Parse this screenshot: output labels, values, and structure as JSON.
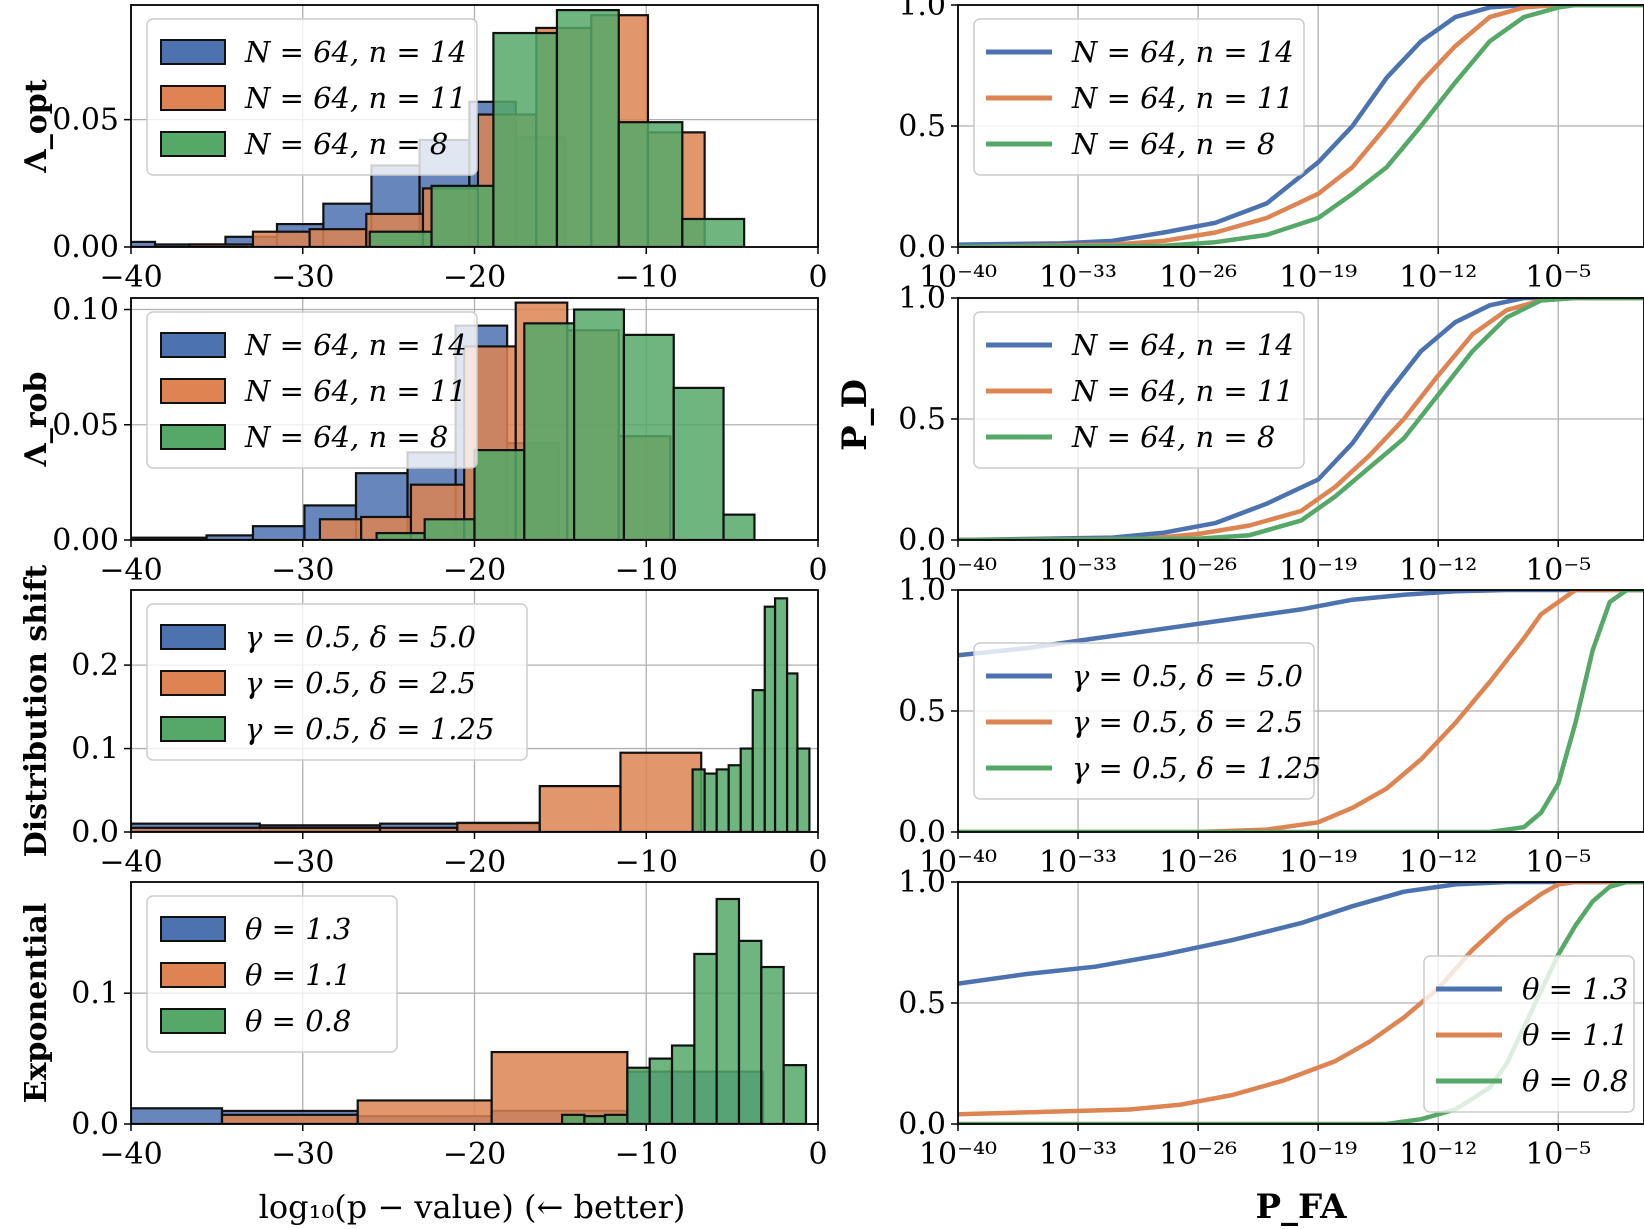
{
  "figure": {
    "hist_xlabel": "log₁₀(p − value) (← better)",
    "roc_xlabel": "P_FA",
    "roc_ylabel": "P_D"
  },
  "colors": {
    "blue": "#4c72b0",
    "orange": "#dd8452",
    "green": "#55a868"
  },
  "chart_data": [
    {
      "type": "bar",
      "row": 0,
      "panel": "histogram",
      "ylabel": "Λ_opt",
      "xlim": [
        -40,
        0
      ],
      "ylim": [
        0,
        0.095
      ],
      "xticks": [
        -40,
        -30,
        -20,
        -10,
        0
      ],
      "xtick_labels": [
        "−40",
        "−30",
        "−20",
        "−10",
        "0"
      ],
      "yticks": [
        0,
        0.05
      ],
      "ytick_labels": [
        "0.00",
        "0.05"
      ],
      "grid": true,
      "legend": "top-left",
      "series": [
        {
          "name": "N = 64, n = 14",
          "color": "blue",
          "edges": [
            -40,
            -38.6,
            -34.5,
            -31.5,
            -28.8,
            -26,
            -23.2,
            -20.3,
            -17.6,
            -14.7
          ],
          "values": [
            0.002,
            0.001,
            0.004,
            0.009,
            0.017,
            0.032,
            0.042,
            0.057,
            0.043
          ]
        },
        {
          "name": "N = 64, n = 11",
          "color": "orange",
          "edges": [
            -36.6,
            -32.9,
            -29.6,
            -26.3,
            -23,
            -19.8,
            -16.4,
            -13.2,
            -9.9,
            -6.6
          ],
          "values": [
            0.001,
            0.006,
            0.007,
            0.013,
            0.023,
            0.052,
            0.086,
            0.091,
            0.045
          ]
        },
        {
          "name": "N = 64, n = 8",
          "color": "green",
          "edges": [
            -26.1,
            -22.5,
            -18.9,
            -15.2,
            -11.6,
            -7.9,
            -4.3
          ],
          "values": [
            0.006,
            0.024,
            0.084,
            0.093,
            0.049,
            0.011
          ]
        }
      ]
    },
    {
      "type": "line",
      "row": 0,
      "panel": "roc",
      "xscale": "log",
      "xlim_log10": [
        -40,
        0
      ],
      "ylim": [
        0,
        1.0
      ],
      "xticks_log10": [
        -40,
        -33,
        -26,
        -19,
        -12,
        -5
      ],
      "xtick_labels": [
        "10⁻⁴⁰",
        "10⁻³³",
        "10⁻²⁶",
        "10⁻¹⁹",
        "10⁻¹²",
        "10⁻⁵"
      ],
      "yticks": [
        0,
        0.5,
        1.0
      ],
      "ytick_labels": [
        "0.0",
        "0.5",
        "1.0"
      ],
      "grid": true,
      "legend": "top-left",
      "series": [
        {
          "name": "N = 64, n = 14",
          "color": "blue",
          "x": [
            -40,
            -34,
            -31,
            -28,
            -25,
            -22,
            -19,
            -17,
            -15,
            -13,
            -11,
            -9,
            -7,
            -5,
            0
          ],
          "y": [
            0.01,
            0.015,
            0.025,
            0.06,
            0.1,
            0.18,
            0.35,
            0.5,
            0.7,
            0.85,
            0.95,
            0.99,
            1.0,
            1.0,
            1.0
          ]
        },
        {
          "name": "N = 64, n = 11",
          "color": "orange",
          "x": [
            -40,
            -31,
            -28,
            -25,
            -22,
            -19,
            -17,
            -15,
            -13,
            -11,
            -9,
            -7,
            -5,
            0
          ],
          "y": [
            0.0,
            0.01,
            0.025,
            0.06,
            0.12,
            0.22,
            0.33,
            0.5,
            0.68,
            0.83,
            0.95,
            0.99,
            1.0,
            1.0
          ]
        },
        {
          "name": "N = 64, n = 8",
          "color": "green",
          "x": [
            -40,
            -28,
            -25,
            -22,
            -19,
            -17,
            -15,
            -13,
            -11,
            -9,
            -7,
            -5,
            -4,
            0
          ],
          "y": [
            0.0,
            0.005,
            0.02,
            0.05,
            0.12,
            0.22,
            0.33,
            0.5,
            0.68,
            0.85,
            0.95,
            0.99,
            1.0,
            1.0
          ]
        }
      ]
    },
    {
      "type": "bar",
      "row": 1,
      "panel": "histogram",
      "ylabel": "Λ_rob",
      "xlim": [
        -40,
        0
      ],
      "ylim": [
        0,
        0.105
      ],
      "xticks": [
        -40,
        -30,
        -20,
        -10,
        0
      ],
      "xtick_labels": [
        "−40",
        "−30",
        "−20",
        "−10",
        "0"
      ],
      "yticks": [
        0,
        0.05,
        0.1
      ],
      "ytick_labels": [
        "0.00",
        "0.05",
        "0.10"
      ],
      "grid": true,
      "legend": "top-left",
      "series": [
        {
          "name": "N = 64, n = 14",
          "color": "blue",
          "edges": [
            -40,
            -35.6,
            -32.9,
            -29.9,
            -26.9,
            -23.9,
            -21.1,
            -18.1,
            -15.1
          ],
          "values": [
            0.001,
            0.002,
            0.006,
            0.015,
            0.029,
            0.038,
            0.093,
            0.042
          ]
        },
        {
          "name": "N = 64, n = 11",
          "color": "orange",
          "edges": [
            -29,
            -26.6,
            -23.7,
            -20.6,
            -17.6,
            -14.6,
            -11.6,
            -8.6
          ],
          "values": [
            0.009,
            0.01,
            0.024,
            0.084,
            0.103,
            0.091,
            0.045
          ]
        },
        {
          "name": "N = 64, n = 8",
          "color": "green",
          "edges": [
            -25.7,
            -22.9,
            -20,
            -17.1,
            -14.2,
            -11.3,
            -8.4,
            -5.5,
            -3.7
          ],
          "values": [
            0.003,
            0.009,
            0.039,
            0.094,
            0.1,
            0.089,
            0.066,
            0.011
          ]
        }
      ]
    },
    {
      "type": "line",
      "row": 1,
      "panel": "roc",
      "xscale": "log",
      "xlim_log10": [
        -40,
        0
      ],
      "ylim": [
        0,
        1.0
      ],
      "xticks_log10": [
        -40,
        -33,
        -26,
        -19,
        -12,
        -5
      ],
      "xtick_labels": [
        "10⁻⁴⁰",
        "10⁻³³",
        "10⁻²⁶",
        "10⁻¹⁹",
        "10⁻¹²",
        "10⁻⁵"
      ],
      "yticks": [
        0,
        0.5,
        1.0
      ],
      "ytick_labels": [
        "0.0",
        "0.5",
        "1.0"
      ],
      "grid": true,
      "legend": "top-left",
      "series": [
        {
          "name": "N = 64, n = 14",
          "color": "blue",
          "x": [
            -40,
            -31,
            -28,
            -25,
            -22,
            -19,
            -17,
            -15,
            -13,
            -11,
            -9,
            -7,
            -5,
            0
          ],
          "y": [
            0.0,
            0.01,
            0.03,
            0.07,
            0.15,
            0.25,
            0.4,
            0.6,
            0.78,
            0.9,
            0.97,
            1.0,
            1.0,
            1.0
          ]
        },
        {
          "name": "N = 64, n = 11",
          "color": "orange",
          "x": [
            -40,
            -29,
            -26,
            -23,
            -20,
            -18,
            -16,
            -14,
            -12,
            -10,
            -8,
            -6,
            -4,
            0
          ],
          "y": [
            0.0,
            0.005,
            0.025,
            0.06,
            0.12,
            0.22,
            0.35,
            0.5,
            0.68,
            0.85,
            0.95,
            0.99,
            1.0,
            1.0
          ]
        },
        {
          "name": "N = 64, n = 8",
          "color": "green",
          "x": [
            -40,
            -26,
            -23,
            -20,
            -18,
            -16,
            -14,
            -12,
            -10,
            -8,
            -6,
            -4,
            0
          ],
          "y": [
            0.0,
            0.005,
            0.02,
            0.08,
            0.18,
            0.3,
            0.42,
            0.6,
            0.78,
            0.92,
            0.99,
            1.0,
            1.0
          ]
        }
      ]
    },
    {
      "type": "bar",
      "row": 2,
      "panel": "histogram",
      "ylabel": "Distribution shift",
      "xlim": [
        -40,
        0
      ],
      "ylim": [
        0,
        0.29
      ],
      "xticks": [
        -40,
        -30,
        -20,
        -10,
        0
      ],
      "xtick_labels": [
        "−40",
        "−30",
        "−20",
        "−10",
        "0"
      ],
      "yticks": [
        0,
        0.1,
        0.2
      ],
      "ytick_labels": [
        "0.0",
        "0.1",
        "0.2"
      ],
      "grid": true,
      "legend": "top-left",
      "series": [
        {
          "name": "γ = 0.5, δ = 5.0",
          "color": "blue",
          "edges": [
            -40,
            -32.5,
            -25.5,
            -16.2
          ],
          "values": [
            0.01,
            0.008,
            0.01
          ]
        },
        {
          "name": "γ = 0.5, δ = 2.5",
          "color": "orange",
          "edges": [
            -40,
            -25.5,
            -21,
            -16.2,
            -11.5,
            -6.8
          ],
          "values": [
            0.005,
            0.005,
            0.011,
            0.055,
            0.095
          ]
        },
        {
          "name": "γ = 0.5, δ = 1.25",
          "color": "green",
          "edges": [
            -7.3,
            -6.6,
            -5.9,
            -5.2,
            -4.5,
            -3.8,
            -3.1,
            -2.5,
            -1.8,
            -1.2,
            -0.5
          ],
          "values": [
            0.075,
            0.07,
            0.075,
            0.08,
            0.1,
            0.17,
            0.27,
            0.28,
            0.19,
            0.1
          ]
        }
      ]
    },
    {
      "type": "line",
      "row": 2,
      "panel": "roc",
      "xscale": "log",
      "xlim_log10": [
        -40,
        0
      ],
      "ylim": [
        0,
        1.0
      ],
      "xticks_log10": [
        -40,
        -33,
        -26,
        -19,
        -12,
        -5
      ],
      "xtick_labels": [
        "10⁻⁴⁰",
        "10⁻³³",
        "10⁻²⁶",
        "10⁻¹⁹",
        "10⁻¹²",
        "10⁻⁵"
      ],
      "yticks": [
        0,
        0.5,
        1.0
      ],
      "ytick_labels": [
        "0.0",
        "0.5",
        "1.0"
      ],
      "grid": true,
      "legend": "center-left",
      "series": [
        {
          "name": "γ = 0.5, δ = 5.0",
          "color": "blue",
          "x": [
            -40,
            -36,
            -32,
            -28,
            -24,
            -20,
            -17,
            -14,
            -11,
            -8,
            -5,
            0
          ],
          "y": [
            0.73,
            0.76,
            0.8,
            0.84,
            0.88,
            0.92,
            0.96,
            0.98,
            0.995,
            1.0,
            1.0,
            1.0
          ]
        },
        {
          "name": "γ = 0.5, δ = 2.5",
          "color": "orange",
          "x": [
            -40,
            -26,
            -22,
            -19,
            -17,
            -15,
            -13,
            -11,
            -9,
            -7,
            -6,
            -5,
            -4,
            0
          ],
          "y": [
            0.0,
            0.0,
            0.01,
            0.04,
            0.1,
            0.18,
            0.3,
            0.45,
            0.62,
            0.8,
            0.9,
            0.95,
            1.0,
            1.0
          ]
        },
        {
          "name": "γ = 0.5, δ = 1.25",
          "color": "green",
          "x": [
            -40,
            -9,
            -7,
            -6,
            -5,
            -4,
            -3,
            -2,
            -1,
            0
          ],
          "y": [
            0.0,
            0.0,
            0.02,
            0.08,
            0.2,
            0.45,
            0.75,
            0.95,
            1.0,
            1.0
          ]
        }
      ]
    },
    {
      "type": "bar",
      "row": 3,
      "panel": "histogram",
      "ylabel": "Exponential",
      "xlim": [
        -40,
        0
      ],
      "ylim": [
        0,
        0.185
      ],
      "xticks": [
        -40,
        -30,
        -20,
        -10,
        0
      ],
      "xtick_labels": [
        "−40",
        "−30",
        "−20",
        "−10",
        "0"
      ],
      "yticks": [
        0,
        0.1
      ],
      "ytick_labels": [
        "0.0",
        "0.1"
      ],
      "grid": true,
      "legend": "top-left",
      "series": [
        {
          "name": "θ = 1.3",
          "color": "blue",
          "edges": [
            -40,
            -34.7,
            -26.8,
            -19,
            -11.1,
            -3.2
          ],
          "values": [
            0.012,
            0.01,
            0.006,
            0.01,
            0.04
          ]
        },
        {
          "name": "θ = 1.1",
          "color": "orange",
          "edges": [
            -34.7,
            -26.8,
            -19,
            -11.1
          ],
          "values": [
            0.007,
            0.018,
            0.055
          ]
        },
        {
          "name": "θ = 0.8",
          "color": "green",
          "edges": [
            -14.9,
            -13.6,
            -12.4,
            -11.1,
            -9.8,
            -8.5,
            -7.2,
            -5.9,
            -4.6,
            -3.3,
            -2,
            -0.7
          ],
          "values": [
            0.007,
            0.006,
            0.007,
            0.043,
            0.05,
            0.06,
            0.13,
            0.172,
            0.14,
            0.12,
            0.045
          ]
        }
      ]
    },
    {
      "type": "line",
      "row": 3,
      "panel": "roc",
      "xscale": "log",
      "xlim_log10": [
        -40,
        0
      ],
      "ylim": [
        0,
        1.0
      ],
      "xticks_log10": [
        -40,
        -33,
        -26,
        -19,
        -12,
        -5
      ],
      "xtick_labels": [
        "10⁻⁴⁰",
        "10⁻³³",
        "10⁻²⁶",
        "10⁻¹⁹",
        "10⁻¹²",
        "10⁻⁵"
      ],
      "yticks": [
        0,
        0.5,
        1.0
      ],
      "ytick_labels": [
        "0.0",
        "0.5",
        "1.0"
      ],
      "grid": true,
      "legend": "bottom-right",
      "series": [
        {
          "name": "θ = 1.3",
          "color": "blue",
          "x": [
            -40,
            -36,
            -32,
            -28,
            -24,
            -20,
            -17,
            -14,
            -11,
            -8,
            -5,
            0
          ],
          "y": [
            0.58,
            0.62,
            0.65,
            0.7,
            0.76,
            0.83,
            0.9,
            0.96,
            0.99,
            1.0,
            1.0,
            1.0
          ]
        },
        {
          "name": "θ = 1.1",
          "color": "orange",
          "x": [
            -40,
            -35,
            -30,
            -27,
            -24,
            -21,
            -18,
            -16,
            -14,
            -12,
            -10,
            -8,
            -6,
            -5,
            -4,
            0
          ],
          "y": [
            0.04,
            0.05,
            0.06,
            0.08,
            0.12,
            0.18,
            0.26,
            0.34,
            0.44,
            0.56,
            0.72,
            0.85,
            0.95,
            0.99,
            1.0,
            1.0
          ]
        },
        {
          "name": "θ = 0.8",
          "color": "green",
          "x": [
            -40,
            -15,
            -13,
            -11,
            -9,
            -8,
            -7,
            -6,
            -5,
            -4,
            -3,
            -2,
            -1,
            0
          ],
          "y": [
            0.0,
            0.0,
            0.02,
            0.06,
            0.15,
            0.25,
            0.4,
            0.55,
            0.7,
            0.82,
            0.92,
            0.98,
            1.0,
            1.0
          ]
        }
      ]
    }
  ]
}
